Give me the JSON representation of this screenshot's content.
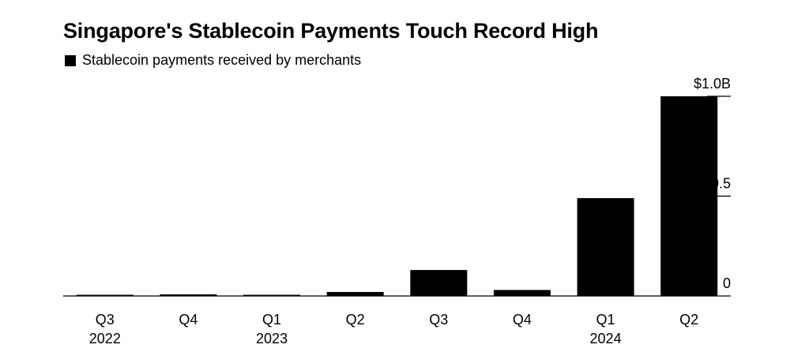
{
  "chart_data": {
    "type": "bar",
    "title": "Singapore's Stablecoin Payments Touch Record High",
    "legend": {
      "position": "top-left",
      "entries": [
        "Stablecoin payments received by merchants"
      ]
    },
    "categories": [
      "Q3 2022",
      "Q4 2022",
      "Q1 2023",
      "Q2 2023",
      "Q3 2023",
      "Q4 2023",
      "Q1 2024",
      "Q2 2024"
    ],
    "x_tick_labels": [
      {
        "quarter": "Q3",
        "year": "2022"
      },
      {
        "quarter": "Q4",
        "year": ""
      },
      {
        "quarter": "Q1",
        "year": "2023"
      },
      {
        "quarter": "Q2",
        "year": ""
      },
      {
        "quarter": "Q3",
        "year": ""
      },
      {
        "quarter": "Q4",
        "year": ""
      },
      {
        "quarter": "Q1",
        "year": "2024"
      },
      {
        "quarter": "Q2",
        "year": ""
      }
    ],
    "series": [
      {
        "name": "Stablecoin payments received by merchants",
        "values": [
          0.003,
          0.008,
          0.003,
          0.02,
          0.13,
          0.03,
          0.49,
          1.0
        ]
      }
    ],
    "y_ticks": [
      {
        "value": 0,
        "label": "0"
      },
      {
        "value": 0.5,
        "label": "0.5"
      },
      {
        "value": 1.0,
        "label": "$1.0B"
      }
    ],
    "ylim": [
      0,
      1.0
    ],
    "y_axis_side": "right",
    "grid": false,
    "bar_color": "#000000"
  }
}
